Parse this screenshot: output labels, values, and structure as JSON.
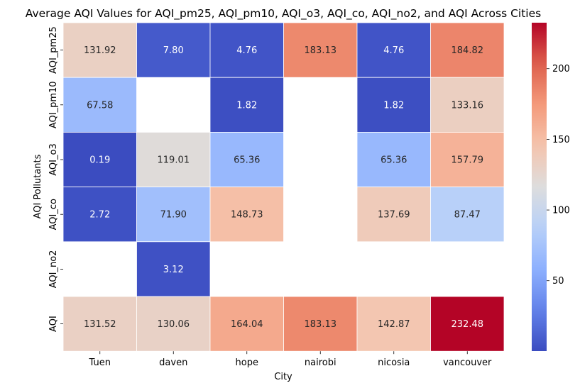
{
  "chart_data": {
    "type": "heatmap",
    "title": "Average AQI Values for AQI_pm25, AQI_pm10, AQI_o3, AQI_co, AQI_no2, and AQI Across Cities",
    "xlabel": "City",
    "ylabel": "AQI Pollutants",
    "columns": [
      "Tuen",
      "daven",
      "hope",
      "nairobi",
      "nicosia",
      "vancouver"
    ],
    "rows": [
      "AQI_pm25",
      "AQI_pm10",
      "AQI_o3",
      "AQI_co",
      "AQI_no2",
      "AQI"
    ],
    "values": [
      [
        131.92,
        7.8,
        4.76,
        183.13,
        4.76,
        184.82
      ],
      [
        67.58,
        null,
        1.82,
        null,
        1.82,
        133.16
      ],
      [
        0.19,
        119.01,
        65.36,
        null,
        65.36,
        157.79
      ],
      [
        2.72,
        71.9,
        148.73,
        null,
        137.69,
        87.47
      ],
      [
        null,
        3.12,
        null,
        null,
        null,
        null
      ],
      [
        131.52,
        130.06,
        164.04,
        183.13,
        142.87,
        232.48
      ]
    ],
    "cell_labels": [
      [
        "131.92",
        "7.80",
        "4.76",
        "183.13",
        "4.76",
        "184.82"
      ],
      [
        "67.58",
        "",
        "1.82",
        "",
        "1.82",
        "133.16"
      ],
      [
        "0.19",
        "119.01",
        "65.36",
        "",
        "65.36",
        "157.79"
      ],
      [
        "2.72",
        "71.90",
        "148.73",
        "",
        "137.69",
        "87.47"
      ],
      [
        "",
        "3.12",
        "",
        "",
        "",
        ""
      ],
      [
        "131.52",
        "130.06",
        "164.04",
        "183.13",
        "142.87",
        "232.48"
      ]
    ],
    "colormap": "coolwarm",
    "vmin": 0.19,
    "vmax": 232.48,
    "colorbar_ticks": [
      50,
      100,
      150,
      200
    ],
    "colorbar_tick_labels": [
      "50",
      "100",
      "150",
      "200"
    ]
  }
}
